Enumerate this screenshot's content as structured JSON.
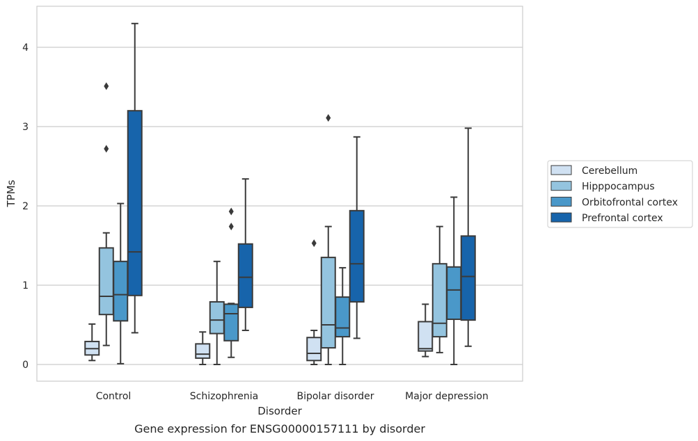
{
  "chart_data": {
    "type": "box",
    "caption": "Gene expression for ENSG00000157111 by disorder",
    "xlabel": "Disorder",
    "ylabel": "TPMs",
    "ylim": [
      -0.2,
      4.55
    ],
    "yticks": [
      0,
      1,
      2,
      3,
      4
    ],
    "grid": "horizontal",
    "legend_position": "right",
    "categories": [
      "Control",
      "Schizophrenia",
      "Bipolar disorder",
      "Major depression"
    ],
    "series": [
      {
        "name": "Cerebellum",
        "color": "#d0e1f2",
        "boxes": [
          {
            "whisker_low": 0.05,
            "q1": 0.12,
            "median": 0.2,
            "q3": 0.29,
            "whisker_high": 0.51,
            "outliers": []
          },
          {
            "whisker_low": 0.0,
            "q1": 0.08,
            "median": 0.13,
            "q3": 0.26,
            "whisker_high": 0.41,
            "outliers": []
          },
          {
            "whisker_low": 0.0,
            "q1": 0.05,
            "median": 0.14,
            "q3": 0.34,
            "whisker_high": 0.43,
            "outliers": [
              1.53
            ]
          },
          {
            "whisker_low": 0.1,
            "q1": 0.17,
            "median": 0.2,
            "q3": 0.54,
            "whisker_high": 0.76,
            "outliers": []
          }
        ]
      },
      {
        "name": "Hipppocampus",
        "color": "#94c4df",
        "boxes": [
          {
            "whisker_low": 0.24,
            "q1": 0.63,
            "median": 0.86,
            "q3": 1.47,
            "whisker_high": 1.66,
            "outliers": [
              3.51,
              2.72
            ]
          },
          {
            "whisker_low": 0.0,
            "q1": 0.39,
            "median": 0.56,
            "q3": 0.79,
            "whisker_high": 1.3,
            "outliers": []
          },
          {
            "whisker_low": 0.0,
            "q1": 0.21,
            "median": 0.5,
            "q3": 1.35,
            "whisker_high": 1.74,
            "outliers": [
              3.11
            ]
          },
          {
            "whisker_low": 0.15,
            "q1": 0.35,
            "median": 0.52,
            "q3": 1.27,
            "whisker_high": 1.74,
            "outliers": []
          }
        ]
      },
      {
        "name": "Orbitofrontal cortex",
        "color": "#4a98c9",
        "boxes": [
          {
            "whisker_low": 0.01,
            "q1": 0.55,
            "median": 0.88,
            "q3": 1.3,
            "whisker_high": 2.03,
            "outliers": []
          },
          {
            "whisker_low": 0.09,
            "q1": 0.3,
            "median": 0.64,
            "q3": 0.76,
            "whisker_high": 0.77,
            "outliers": [
              1.93,
              1.74
            ]
          },
          {
            "whisker_low": 0.0,
            "q1": 0.35,
            "median": 0.46,
            "q3": 0.85,
            "whisker_high": 1.22,
            "outliers": []
          },
          {
            "whisker_low": 0.0,
            "q1": 0.57,
            "median": 0.94,
            "q3": 1.23,
            "whisker_high": 2.11,
            "outliers": []
          }
        ]
      },
      {
        "name": "Prefrontal cortex",
        "color": "#1764ab",
        "boxes": [
          {
            "whisker_low": 0.4,
            "q1": 0.87,
            "median": 1.42,
            "q3": 3.2,
            "whisker_high": 4.3,
            "outliers": []
          },
          {
            "whisker_low": 0.43,
            "q1": 0.72,
            "median": 1.1,
            "q3": 1.52,
            "whisker_high": 2.34,
            "outliers": []
          },
          {
            "whisker_low": 0.33,
            "q1": 0.79,
            "median": 1.27,
            "q3": 1.94,
            "whisker_high": 2.87,
            "outliers": []
          },
          {
            "whisker_low": 0.23,
            "q1": 0.56,
            "median": 1.11,
            "q3": 1.62,
            "whisker_high": 2.98,
            "outliers": []
          }
        ]
      }
    ]
  }
}
